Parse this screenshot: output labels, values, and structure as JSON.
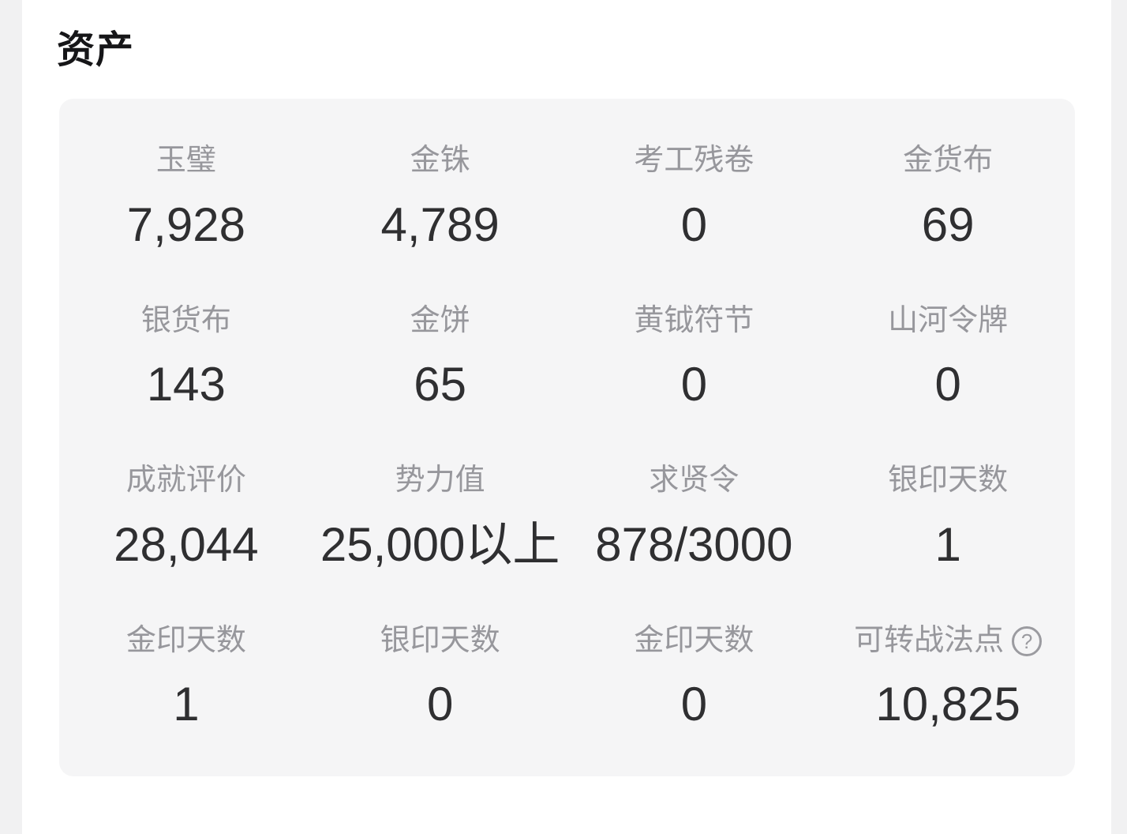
{
  "page": {
    "title": "资产"
  },
  "assets": {
    "help_icon": "?",
    "items": [
      {
        "label": "玉璧",
        "value": "7,928"
      },
      {
        "label": "金铢",
        "value": "4,789"
      },
      {
        "label": "考工残卷",
        "value": "0"
      },
      {
        "label": "金货布",
        "value": "69"
      },
      {
        "label": "银货布",
        "value": "143"
      },
      {
        "label": "金饼",
        "value": "65"
      },
      {
        "label": "黄钺符节",
        "value": "0"
      },
      {
        "label": "山河令牌",
        "value": "0"
      },
      {
        "label": "成就评价",
        "value": "28,044"
      },
      {
        "label": "势力值",
        "value": "25,000以上"
      },
      {
        "label": "求贤令",
        "value": "878/3000"
      },
      {
        "label": "银印天数",
        "value": "1"
      },
      {
        "label": "金印天数",
        "value": "1"
      },
      {
        "label": "银印天数",
        "value": "0"
      },
      {
        "label": "金印天数",
        "value": "0"
      },
      {
        "label": "可转战法点",
        "value": "10,825"
      }
    ]
  },
  "colors": {
    "card_background": "#f5f5f6",
    "edge_strip": "#f1f1f2",
    "label_text": "#97979c",
    "value_text": "#2f2f31",
    "heading_text": "#161618"
  }
}
